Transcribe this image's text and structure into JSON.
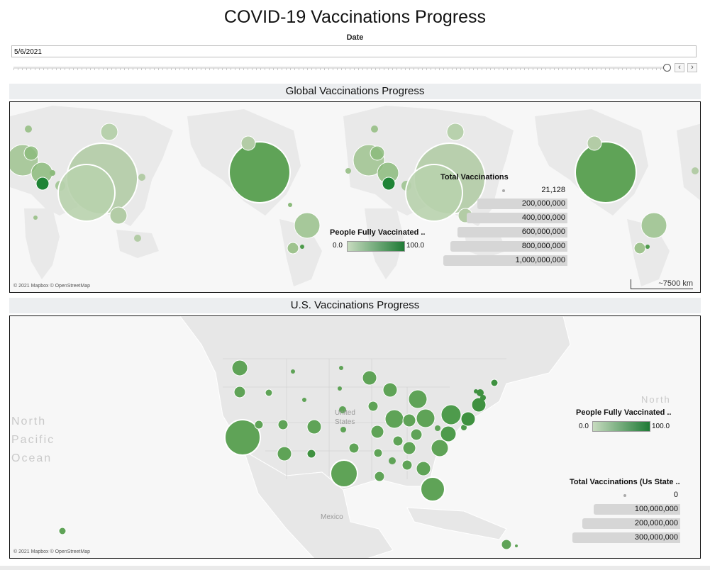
{
  "title": "COVID-19 Vaccinations Progress",
  "date_filter": {
    "label": "Date",
    "value": "5/6/2021"
  },
  "global_map": {
    "header": "Global Vaccinations Progress",
    "attribution": "© 2021 Mapbox © OpenStreetMap",
    "scale": "~7500 km",
    "color_legend": {
      "title": "People Fully Vaccinated ..",
      "min": "0.0",
      "max": "100.0"
    },
    "size_legend": {
      "title": "Total Vaccinations",
      "items": [
        "21,128",
        "200,000,000",
        "400,000,000",
        "600,000,000",
        "800,000,000",
        "1,000,000,000"
      ]
    }
  },
  "us_map": {
    "header": "U.S. Vaccinations Progress",
    "attribution": "© 2021 Mapbox © OpenStreetMap",
    "ocean_label": [
      "North",
      "Pacific",
      "Ocean"
    ],
    "north_label": "North",
    "country_labels": {
      "us": "United\nStates",
      "mexico": "Mexico"
    },
    "color_legend": {
      "title": "People Fully Vaccinated ..",
      "min": "0.0",
      "max": "100.0"
    },
    "size_legend": {
      "title": "Total Vaccinations (Us State ..",
      "items": [
        "0",
        "100,000,000",
        "200,000,000",
        "300,000,000"
      ]
    }
  },
  "colors": {
    "light_green": "#b3cca6",
    "mid_green": "#6aaa5f",
    "dark_green": "#1e7a35",
    "land": "#ebebeb",
    "water": "#f7f7f7"
  }
}
